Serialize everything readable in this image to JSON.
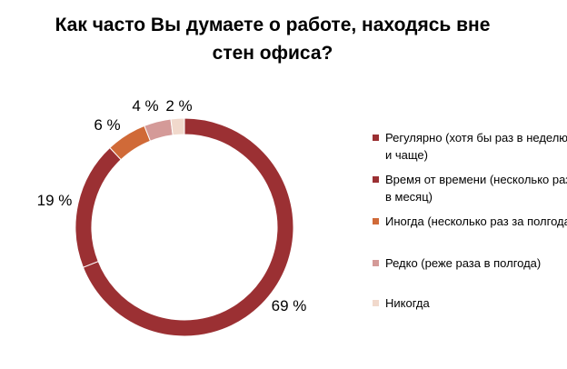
{
  "chart_data": {
    "type": "pie",
    "donut": true,
    "title": "Как часто Вы думаете о работе, находясь вне стен офиса?",
    "categories": [
      "Регулярно (хотя бы раз в неделю и чаще)",
      "Время от времени (несколько раз в месяц)",
      "Иногда (несколько раз за полгода)",
      "Редко (реже раза в полгода)",
      "Никогда"
    ],
    "values": [
      69,
      19,
      6,
      4,
      2
    ],
    "value_labels": [
      "69 %",
      "19 %",
      "6 %",
      "4 %",
      "2 %"
    ],
    "colors": [
      "#9B3033",
      "#9B3033",
      "#D06A38",
      "#D49A98",
      "#F1D9CC"
    ],
    "legend_placement": "right"
  }
}
